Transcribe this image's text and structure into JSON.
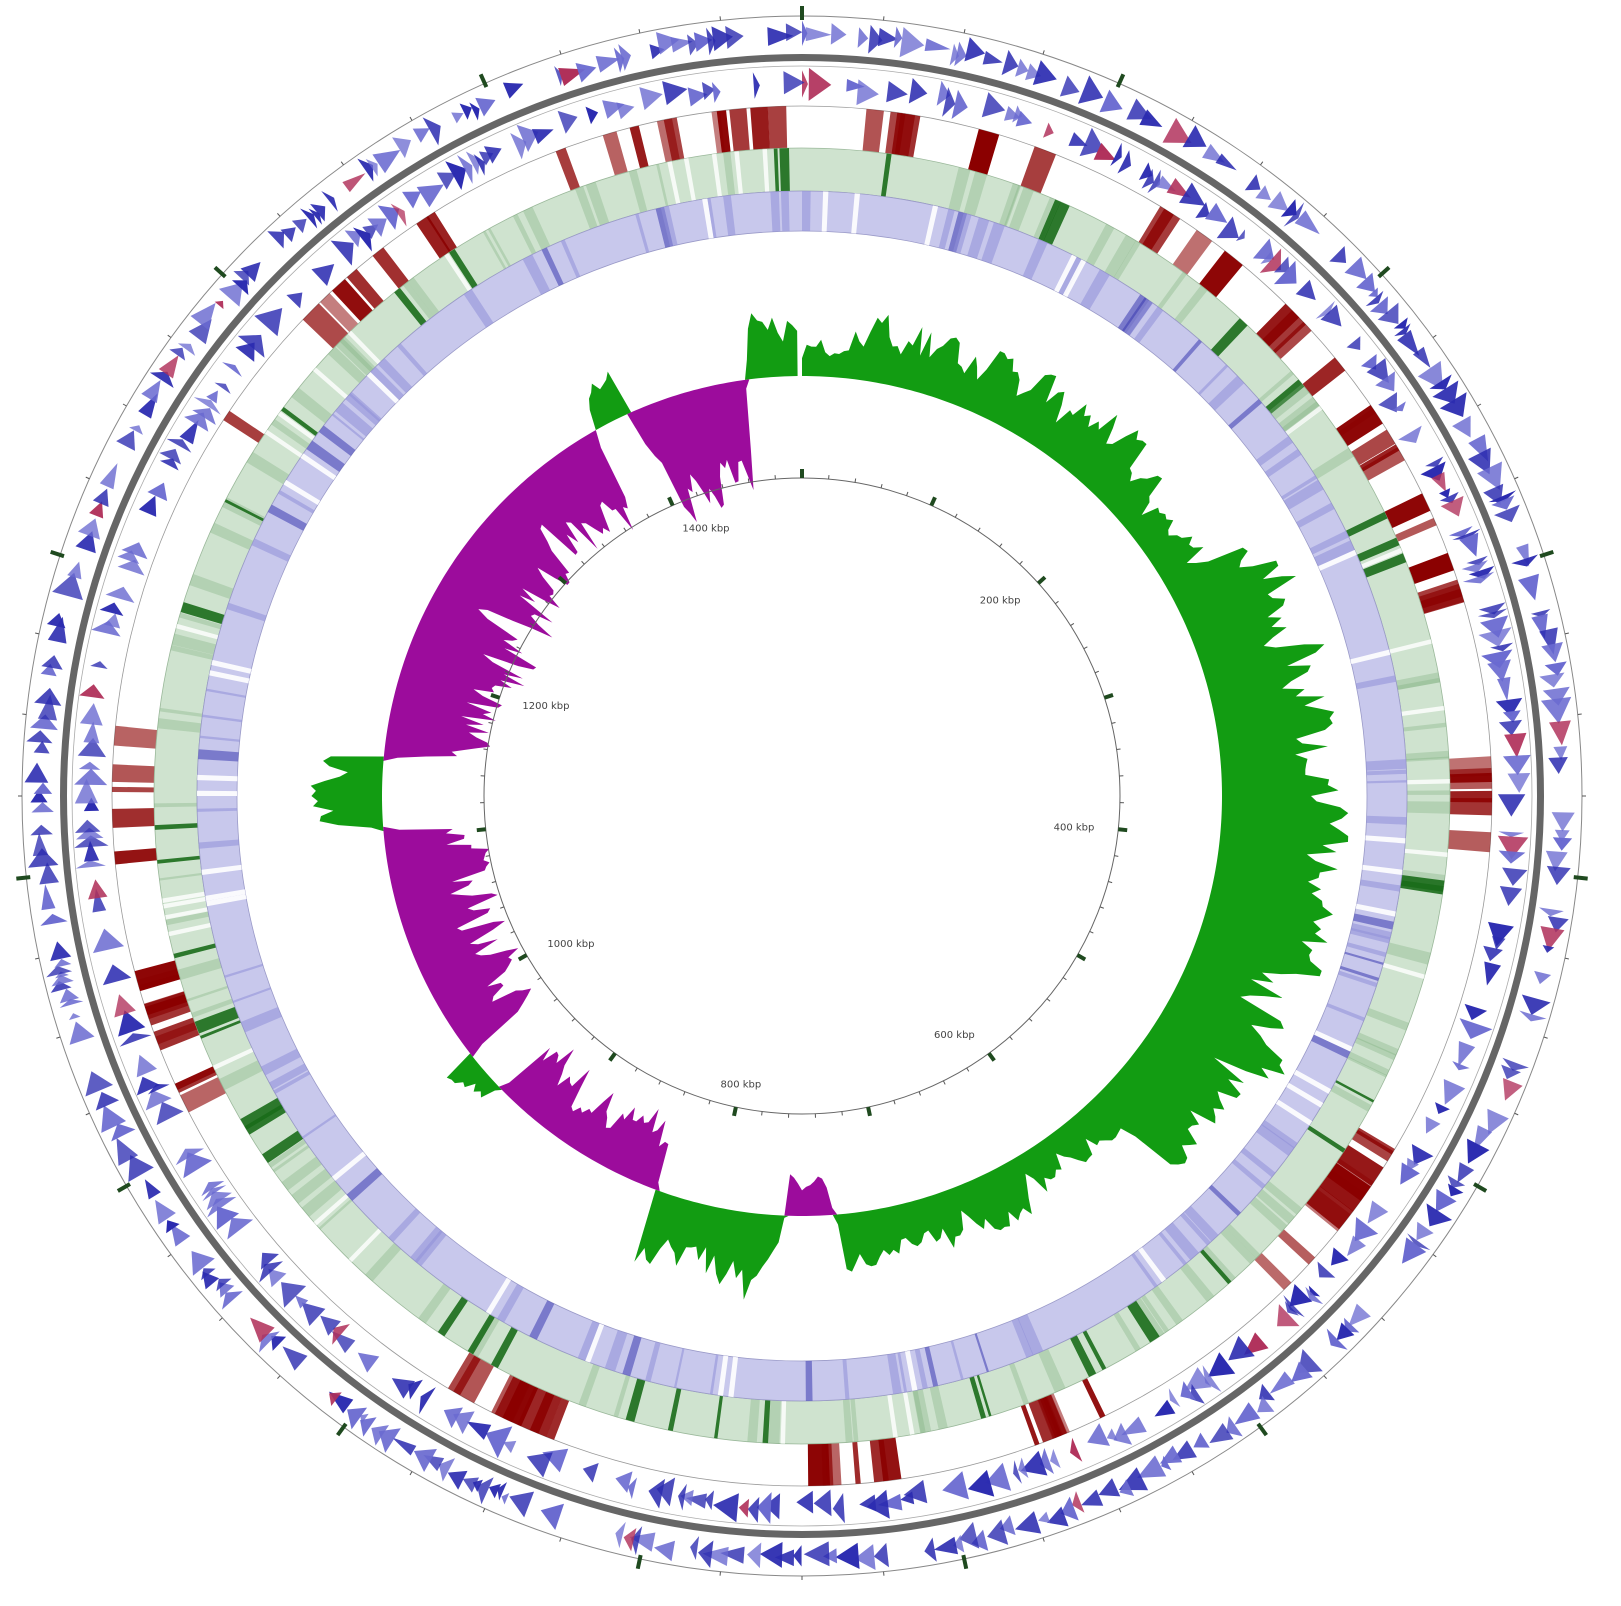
{
  "map": {
    "genome_length_kbp": 1500,
    "scale_labels": [
      {
        "kbp": 200,
        "text": "200 kbp"
      },
      {
        "kbp": 400,
        "text": "400 kbp"
      },
      {
        "kbp": 600,
        "text": "600 kbp"
      },
      {
        "kbp": 800,
        "text": "800 kbp"
      },
      {
        "kbp": 1000,
        "text": "1000 kbp"
      },
      {
        "kbp": 1200,
        "text": "1200 kbp"
      },
      {
        "kbp": 1400,
        "text": "1400 kbp"
      }
    ]
  },
  "colors": {
    "cds": "#2b2bb0",
    "cds_light": "#6a6ad0",
    "highlight": "#b0305a",
    "red_feature": "#8b0000",
    "green_track_fill": "#cfe3cf",
    "green_feature": "#1a6b1a",
    "blue_track_fill": "#c8c8ec",
    "skew_positive": "#129c12",
    "skew_negative": "#9c0c9c",
    "backbone": "#666666",
    "tick_mark": "#1f4a1f"
  },
  "tracks": [
    "Forward strand CDS",
    "Reverse strand CDS",
    "Red feature track",
    "Green similarity track",
    "Blue similarity track",
    "GC skew"
  ]
}
